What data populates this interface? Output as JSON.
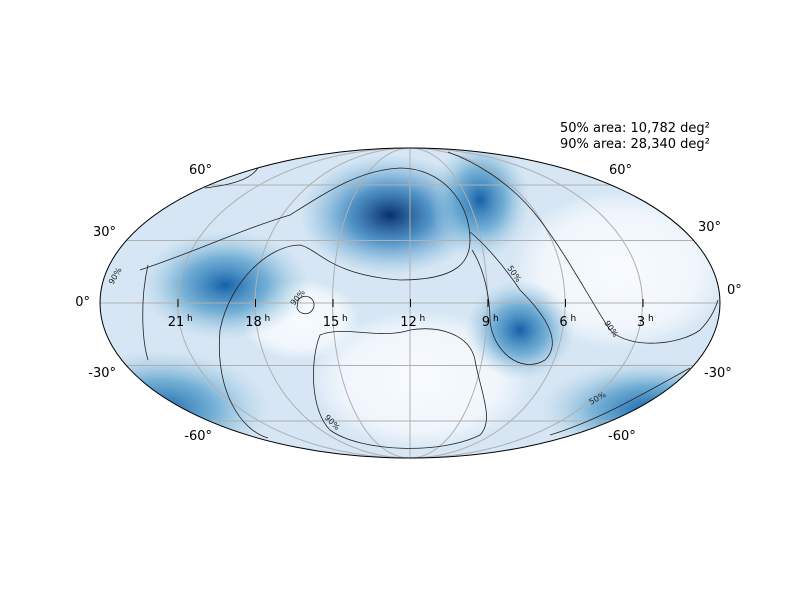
{
  "annotations": [
    "50% area: 10,782 deg²",
    "90% area: 28,340 deg²"
  ],
  "ra_labels": [
    {
      "hour": "21",
      "unit": "h"
    },
    {
      "hour": "18",
      "unit": "h"
    },
    {
      "hour": "15",
      "unit": "h"
    },
    {
      "hour": "12",
      "unit": "h"
    },
    {
      "hour": "9",
      "unit": "h"
    },
    {
      "hour": "6",
      "unit": "h"
    },
    {
      "hour": "3",
      "unit": "h"
    }
  ],
  "dec_labels_left": [
    "60°",
    "30°",
    "0°",
    "-30°",
    "-60°"
  ],
  "dec_labels_right": [
    "60°",
    "30°",
    "0°",
    "-30°",
    "-60°"
  ],
  "contour_labels": [
    "90%",
    "90%",
    "90%",
    "50%",
    "90%",
    "50%"
  ]
}
